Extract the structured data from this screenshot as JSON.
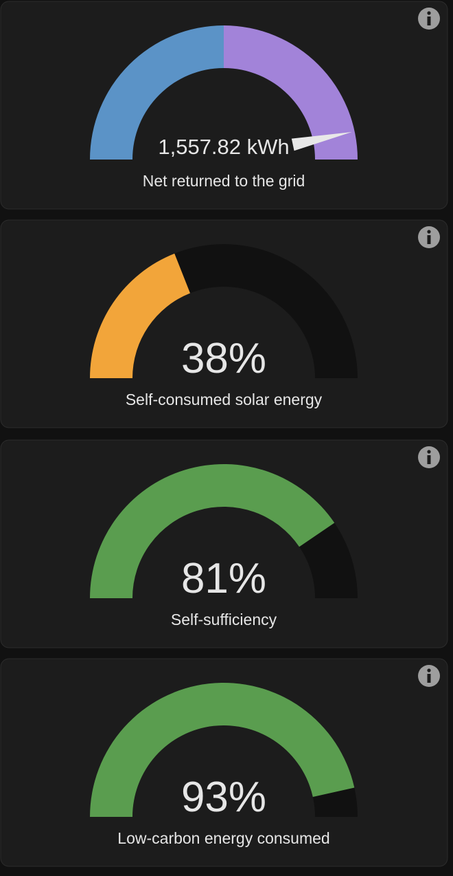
{
  "cards": [
    {
      "type": "grid-gauge",
      "value": 1557.82,
      "value_label": "1,557.82 kWh",
      "label": "Net returned to the grid",
      "lim": [
        -1800,
        1800
      ],
      "colors": [
        "#5b93c7",
        "#a283d9"
      ]
    },
    {
      "type": "percent-gauge",
      "value": 38,
      "value_label": "38%",
      "label": "Self-consumed solar energy",
      "lim": [
        0,
        100
      ],
      "color": "#f2a53a"
    },
    {
      "type": "percent-gauge",
      "value": 81,
      "value_label": "81%",
      "label": "Self-sufficiency",
      "lim": [
        0,
        100
      ],
      "color": "#5a9d4f"
    },
    {
      "type": "percent-gauge",
      "value": 93,
      "value_label": "93%",
      "label": "Low-carbon energy consumed",
      "lim": [
        0,
        100
      ],
      "color": "#5a9d4f"
    }
  ]
}
